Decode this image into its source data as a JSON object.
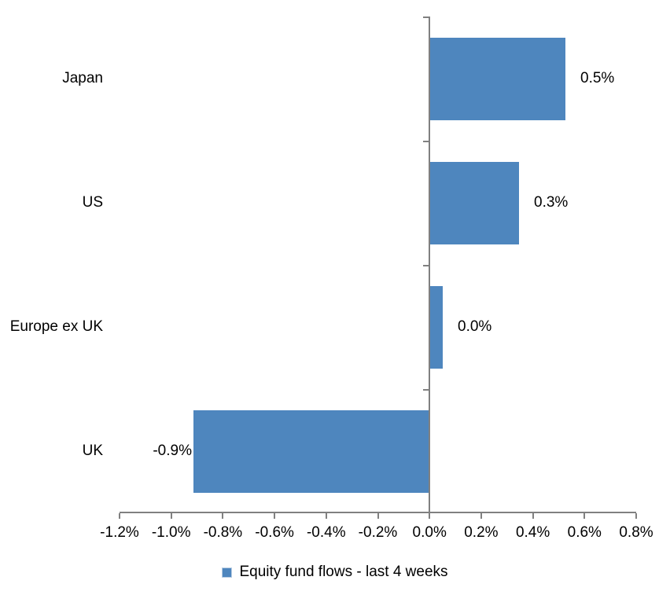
{
  "chart_data": {
    "type": "bar",
    "orientation": "horizontal",
    "title": "",
    "categories": [
      "Japan",
      "US",
      "Europe ex UK",
      "UK"
    ],
    "values": [
      0.5,
      0.3,
      0.0,
      -0.9
    ],
    "value_labels": [
      "0.5%",
      "0.3%",
      "0.0%",
      "-0.9%"
    ],
    "bar_extents_pct": [
      0.525,
      0.345,
      0.05,
      -0.91
    ],
    "series_name": "Equity fund flows - last 4 weeks",
    "xlim": [
      -1.2,
      0.8
    ],
    "x_tick_step": 0.2,
    "x_tick_labels": [
      "-1.2%",
      "-1.0%",
      "-0.8%",
      "-0.6%",
      "-0.4%",
      "-0.2%",
      "0.0%",
      "0.2%",
      "0.4%",
      "0.6%",
      "0.8%"
    ],
    "grid": false,
    "legend_position": "bottom",
    "bar_color": "#4E86BE",
    "axis_color": "#808080",
    "text_color": "#000000"
  },
  "legend": {
    "label": "Equity fund flows - last 4 weeks",
    "swatch_icon": "legend-swatch-square"
  }
}
